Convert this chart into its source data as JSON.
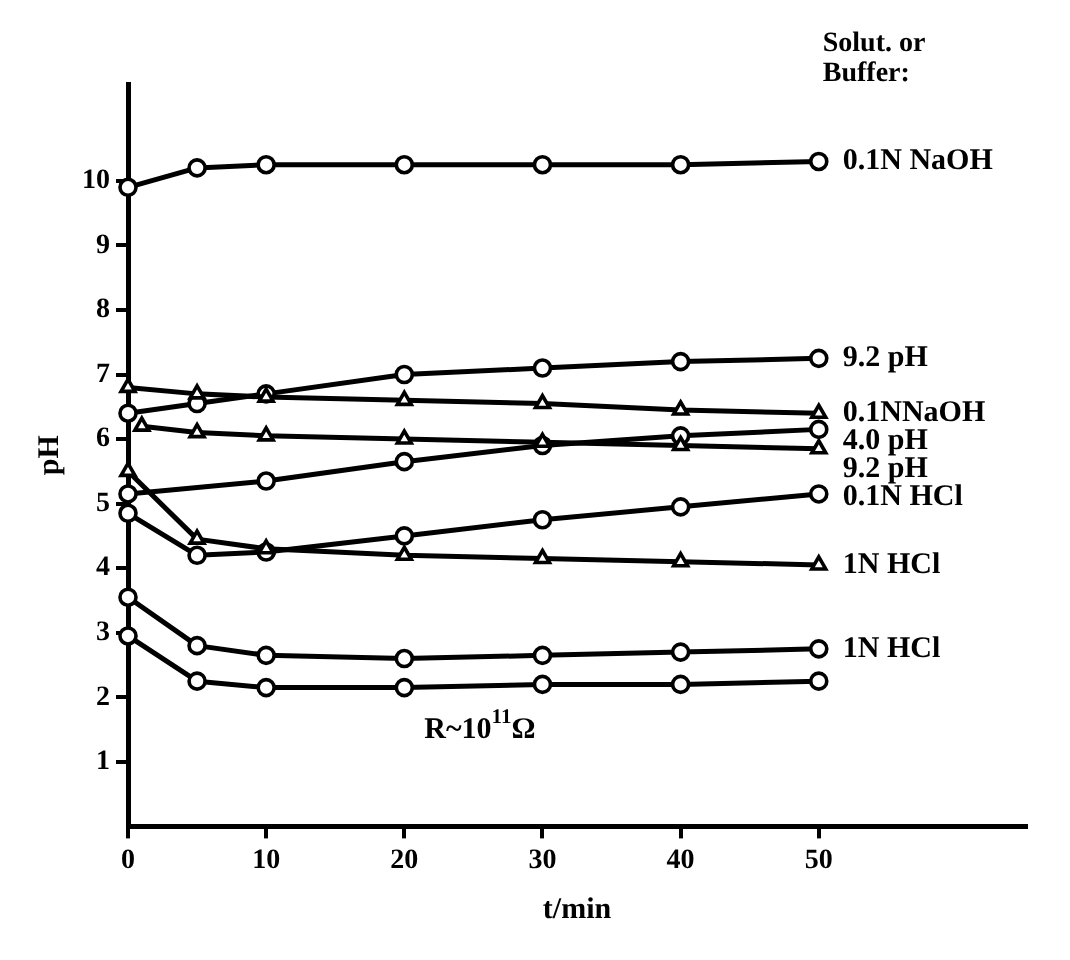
{
  "chart_data": {
    "type": "line",
    "xlabel": "t/min",
    "ylabel": "pH",
    "legend_title": "Solut. or Buffer:",
    "xlim": [
      0,
      65
    ],
    "ylim": [
      0,
      11.5
    ],
    "xticks": [
      0,
      10,
      20,
      30,
      40,
      50
    ],
    "yticks": [
      1,
      2,
      3,
      4,
      5,
      6,
      7,
      8,
      9,
      10
    ],
    "grid": false,
    "legend": false,
    "line_style": "solid",
    "annotations": [
      "R~10$^{11}$Ω"
    ],
    "series": [
      {
        "name": "0.1N NaOH",
        "color": "#000000",
        "marker": "circle",
        "x": [
          0,
          5,
          10,
          20,
          30,
          40,
          50
        ],
        "values": [
          9.9,
          10.2,
          10.25,
          10.25,
          10.25,
          10.25,
          10.3
        ]
      },
      {
        "name": "9.2 pH",
        "color": "#000000",
        "marker": "circle",
        "x": [
          0,
          5,
          10,
          20,
          30,
          40,
          50
        ],
        "values": [
          6.4,
          6.55,
          6.7,
          7.0,
          7.1,
          7.2,
          7.25
        ]
      },
      {
        "name": "0.1NNaOH",
        "color": "#000000",
        "marker": "triangle",
        "x": [
          0,
          5,
          10,
          20,
          30,
          40,
          50
        ],
        "values": [
          6.8,
          6.7,
          6.65,
          6.6,
          6.55,
          6.45,
          6.4
        ]
      },
      {
        "name": "4.0 pH",
        "color": "#000000",
        "marker": "circle",
        "x": [
          0,
          10,
          20,
          30,
          40,
          50
        ],
        "values": [
          5.15,
          5.35,
          5.65,
          5.9,
          6.05,
          6.15
        ]
      },
      {
        "name": "9.2 pH",
        "color": "#000000",
        "marker": "triangle",
        "x": [
          1,
          5,
          10,
          20,
          30,
          40,
          50
        ],
        "values": [
          6.2,
          6.1,
          6.05,
          6.0,
          5.95,
          5.9,
          5.85
        ]
      },
      {
        "name": "0.1N HCl",
        "color": "#000000",
        "marker": "circle",
        "x": [
          0,
          5,
          10,
          20,
          30,
          40,
          50
        ],
        "values": [
          4.85,
          4.2,
          4.25,
          4.5,
          4.75,
          4.95,
          5.15
        ]
      },
      {
        "name": "1N HCl",
        "color": "#000000",
        "marker": "triangle",
        "x": [
          0,
          5,
          10,
          20,
          30,
          40,
          50
        ],
        "values": [
          5.5,
          4.45,
          4.3,
          4.2,
          4.15,
          4.1,
          4.05
        ]
      },
      {
        "name": "1N HCl",
        "color": "#000000",
        "marker": "circle",
        "x": [
          0,
          5,
          10,
          20,
          30,
          40,
          50
        ],
        "values": [
          3.55,
          2.8,
          2.65,
          2.6,
          2.65,
          2.7,
          2.75
        ]
      },
      {
        "color": "#000000",
        "marker": "circle",
        "x": [
          0,
          5,
          10,
          20,
          30,
          40,
          50
        ],
        "values": [
          2.95,
          2.25,
          2.15,
          2.15,
          2.2,
          2.2,
          2.25
        ]
      }
    ]
  }
}
